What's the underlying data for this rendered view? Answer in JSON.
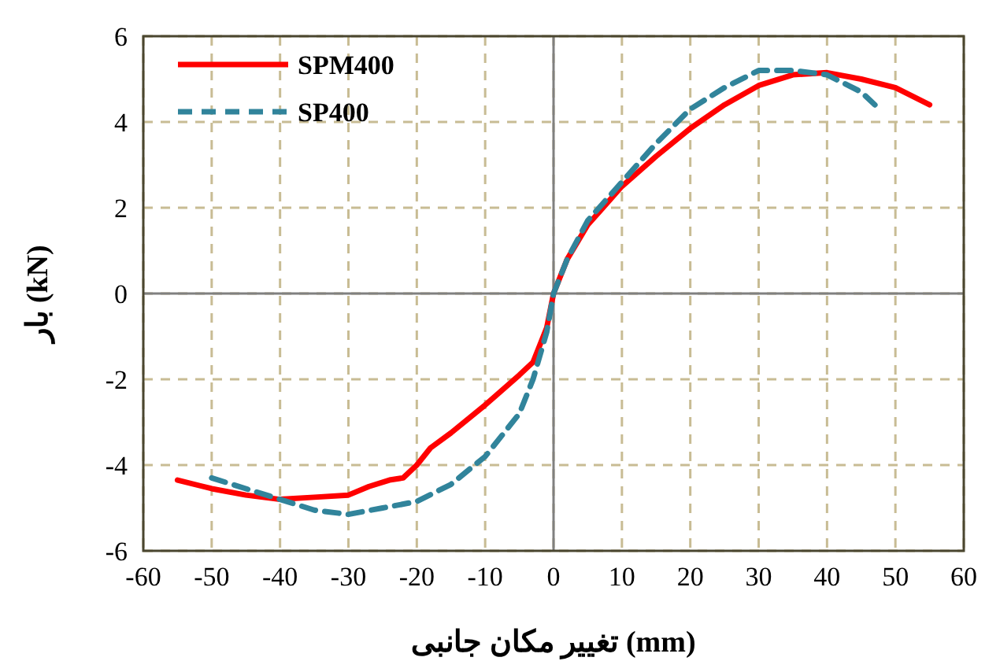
{
  "chart_data": {
    "type": "line",
    "xlabel": "تغییر مکان جانبی (mm)",
    "ylabel": "بار (kN)",
    "xlim": [
      -60,
      60
    ],
    "ylim": [
      -6,
      6
    ],
    "xticks": [
      -60,
      -50,
      -40,
      -30,
      -20,
      -10,
      0,
      10,
      20,
      30,
      40,
      50,
      60
    ],
    "yticks": [
      -6,
      -4,
      -2,
      0,
      2,
      4,
      6
    ],
    "grid": true,
    "legend": "top left",
    "series": [
      {
        "name": "SPM400",
        "color": "#ff0000",
        "line_style": "solid",
        "x": [
          -55,
          -50,
          -45,
          -40,
          -35,
          -30,
          -27,
          -24,
          -22,
          -20,
          -18,
          -15,
          -10,
          -5,
          -3,
          -1,
          0,
          2,
          5,
          10,
          15,
          20,
          25,
          30,
          35,
          40,
          45,
          50,
          55
        ],
        "values": [
          -4.35,
          -4.55,
          -4.7,
          -4.8,
          -4.75,
          -4.7,
          -4.5,
          -4.35,
          -4.3,
          -4.0,
          -3.6,
          -3.25,
          -2.6,
          -1.9,
          -1.6,
          -0.8,
          0,
          0.8,
          1.6,
          2.5,
          3.2,
          3.85,
          4.4,
          4.85,
          5.1,
          5.15,
          5.0,
          4.8,
          4.4
        ]
      },
      {
        "name": "SP400",
        "color": "#31849b",
        "line_style": "dashed",
        "x": [
          -50,
          -45,
          -40,
          -35,
          -30,
          -25,
          -20,
          -15,
          -10,
          -5,
          -3,
          -1,
          0,
          2,
          5,
          10,
          15,
          20,
          25,
          30,
          35,
          40,
          45,
          47
        ],
        "values": [
          -4.3,
          -4.55,
          -4.8,
          -5.05,
          -5.15,
          -5.0,
          -4.85,
          -4.45,
          -3.8,
          -2.8,
          -2.0,
          -0.9,
          0,
          0.8,
          1.7,
          2.6,
          3.5,
          4.3,
          4.8,
          5.2,
          5.2,
          5.1,
          4.7,
          4.4
        ]
      }
    ]
  }
}
